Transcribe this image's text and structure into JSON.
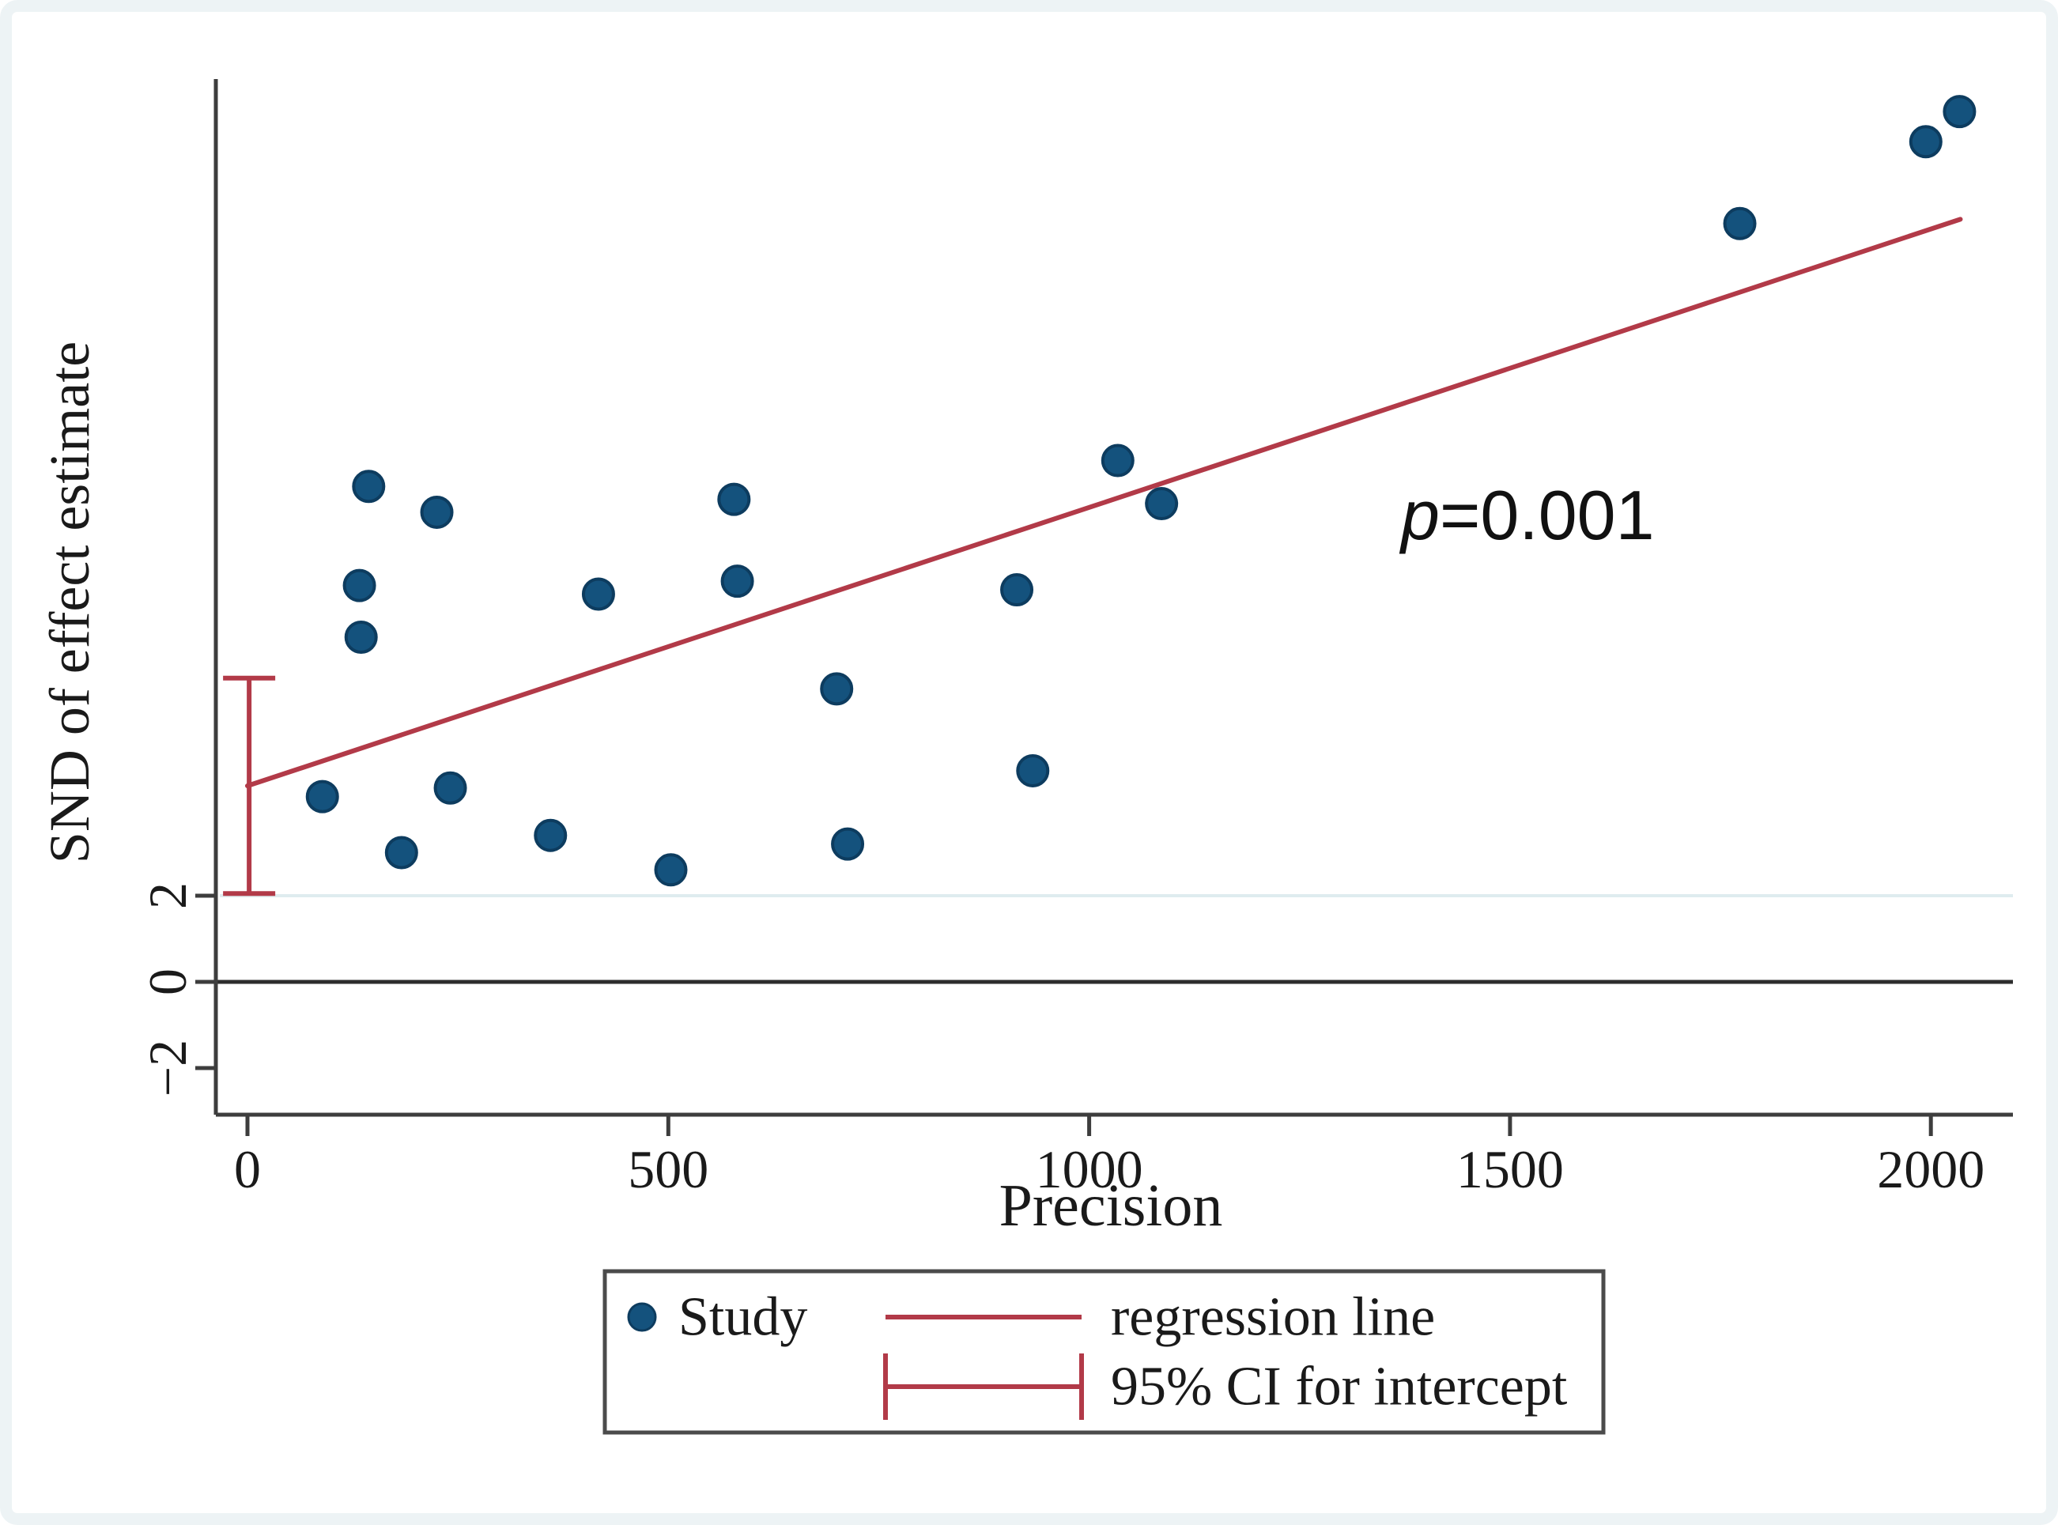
{
  "chart_data": {
    "type": "scatter",
    "title": "",
    "xlabel": "Precision",
    "ylabel": "SND of effect estimate",
    "x_ticks": [
      0,
      500,
      1000,
      1500,
      2000
    ],
    "y_ticks": [
      2,
      0,
      -2
    ],
    "xlim": [
      -40,
      2098
    ],
    "ylim": [
      -3.1,
      20.95
    ],
    "grid": "off",
    "legend_position": "bottom-center",
    "points": [
      [
        144,
        11.5
      ],
      [
        225,
        10.9
      ],
      [
        133,
        9.2
      ],
      [
        135,
        8.0
      ],
      [
        417,
        9.0
      ],
      [
        578,
        11.2
      ],
      [
        582,
        9.3
      ],
      [
        89,
        4.3
      ],
      [
        241,
        4.5
      ],
      [
        183,
        3.0
      ],
      [
        360,
        3.4
      ],
      [
        503,
        2.6
      ],
      [
        700,
        6.8
      ],
      [
        713,
        3.2
      ],
      [
        914,
        9.1
      ],
      [
        933,
        4.9
      ],
      [
        1034,
        12.1
      ],
      [
        1086,
        11.1
      ],
      [
        1773,
        17.6
      ],
      [
        1994,
        19.5
      ],
      [
        2034,
        20.2
      ]
    ],
    "regression_line": {
      "x1": 0,
      "y1": 4.55,
      "x2": 2035,
      "y2": 17.7
    },
    "ci_intercept": {
      "x": 2,
      "low": 2.05,
      "high": 7.05
    },
    "zero_line_y": 0,
    "faint_line_y": 2,
    "annotation": {
      "p_symbol": "p",
      "value_text": "=0.001"
    },
    "legend": [
      {
        "marker": "dot",
        "label": "Study"
      },
      {
        "marker": "line",
        "label": "regression line"
      },
      {
        "marker": "ci",
        "label": "95% CI for intercept"
      }
    ],
    "colors": {
      "point_fill": "#14527d",
      "point_stroke": "#0d3c5f",
      "line": "#b23a48",
      "axis": "#3d3d3d",
      "zero_line": "#2d2d2d",
      "faint_line": "#dfecef",
      "legend_border": "#4b4b4b"
    }
  }
}
